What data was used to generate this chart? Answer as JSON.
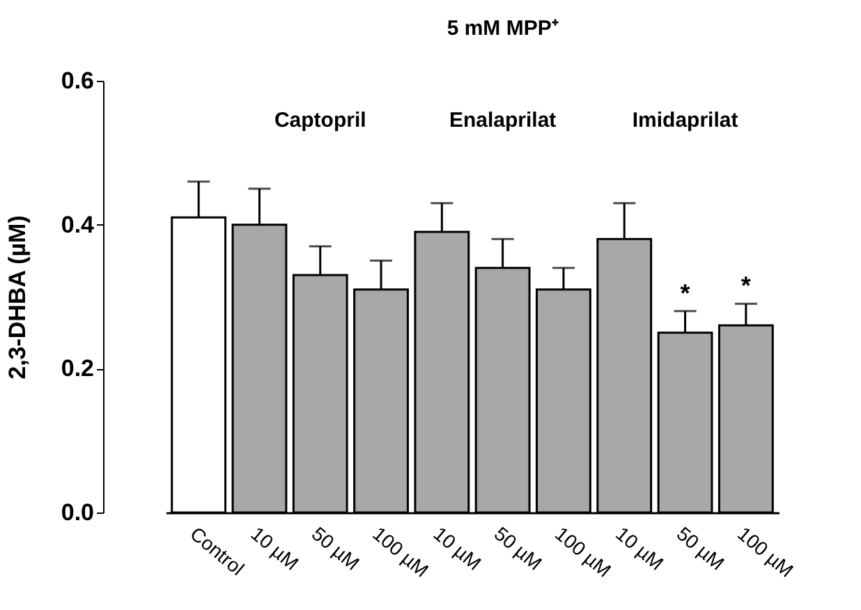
{
  "chart_data": {
    "type": "bar",
    "ylabel": "2,3-DHBA (µM)",
    "categories": [
      "Control",
      "10 µM",
      "50 µM",
      "100 µM",
      "10 µM",
      "50 µM",
      "100 µM",
      "10 µM",
      "50 µM",
      "100 µM"
    ],
    "values": [
      0.41,
      0.4,
      0.33,
      0.31,
      0.39,
      0.34,
      0.31,
      0.38,
      0.25,
      0.26
    ],
    "errors": [
      [
        0.41,
        0.46
      ],
      [
        0.4,
        0.45
      ],
      [
        0.33,
        0.37
      ],
      [
        0.31,
        0.35
      ],
      [
        0.39,
        0.43
      ],
      [
        0.34,
        0.38
      ],
      [
        0.31,
        0.34
      ],
      [
        0.38,
        0.43
      ],
      [
        0.25,
        0.28
      ],
      [
        0.26,
        0.29
      ]
    ],
    "colors": [
      "#ffffff",
      "#a8a8a8",
      "#a8a8a8",
      "#a8a8a8",
      "#a8a8a8",
      "#a8a8a8",
      "#a8a8a8",
      "#a8a8a8",
      "#a8a8a8",
      "#a8a8a8"
    ],
    "ylim": [
      0,
      0.6
    ],
    "yticks": [
      {
        "value": 0,
        "label": "0.0"
      },
      {
        "value": 0.2,
        "label": "0.2"
      },
      {
        "value": 0.4,
        "label": "0.4"
      },
      {
        "value": 0.6,
        "label": "0.6"
      }
    ],
    "grid": false,
    "annotations": [
      "5 mM MPP⁺",
      "Captopril",
      "Enalaprilat",
      "Imidaprilat",
      "*",
      "*"
    ]
  }
}
